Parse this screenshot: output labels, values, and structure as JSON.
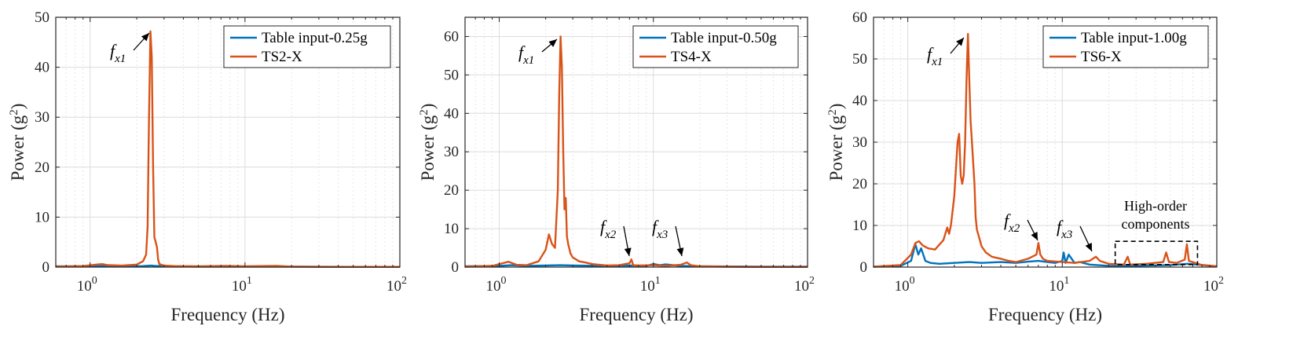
{
  "chart_data": [
    {
      "type": "line",
      "xscale": "log",
      "xlim": [
        0.6,
        100
      ],
      "ylim": [
        0,
        50
      ],
      "yticks": [
        0,
        10,
        20,
        30,
        40,
        50
      ],
      "xtick_labels": [
        {
          "base": "10",
          "exp": "0"
        },
        {
          "base": "10",
          "exp": "1"
        },
        {
          "base": "10",
          "exp": "2"
        }
      ],
      "xlabel": "Frequency (Hz)",
      "ylabel": {
        "main": "Power (g",
        "sup": "2",
        "close": ")"
      },
      "grid": true,
      "legend_position": "top-right",
      "series": [
        {
          "name": "Table input-0.25g",
          "color": "#0072BD",
          "x": [
            0.6,
            1.0,
            1.2,
            1.5,
            2.0,
            2.2,
            2.45,
            2.5,
            2.6,
            2.8,
            3.2,
            5,
            10,
            20,
            50,
            100
          ],
          "y": [
            0.15,
            0.15,
            0.2,
            0.15,
            0.15,
            0.2,
            0.3,
            0.3,
            0.25,
            0.2,
            0.15,
            0.1,
            0.1,
            0.1,
            0.05,
            0.05
          ]
        },
        {
          "name": "TS2-X",
          "color": "#D95319",
          "x": [
            0.6,
            0.9,
            1.1,
            1.2,
            1.3,
            1.6,
            2.0,
            2.2,
            2.3,
            2.35,
            2.4,
            2.45,
            2.5,
            2.55,
            2.6,
            2.65,
            2.7,
            2.75,
            2.8,
            3.0,
            3.5,
            5,
            7.5,
            10,
            16,
            20,
            30,
            50,
            100
          ],
          "y": [
            0.1,
            0.2,
            0.5,
            0.6,
            0.4,
            0.3,
            0.5,
            1.2,
            2.5,
            8,
            30,
            47.2,
            42,
            20,
            6,
            5,
            4,
            1.5,
            0.6,
            0.3,
            0.2,
            0.15,
            0.25,
            0.15,
            0.25,
            0.1,
            0.05,
            0.05,
            0.05
          ]
        }
      ],
      "annotations": [
        {
          "text": "f",
          "sub": "x1",
          "x": 2.48,
          "y": 47
        }
      ]
    },
    {
      "type": "line",
      "xscale": "log",
      "xlim": [
        0.6,
        100
      ],
      "ylim": [
        0,
        65
      ],
      "yticks": [
        0,
        10,
        20,
        30,
        40,
        50,
        60
      ],
      "xtick_labels": [
        {
          "base": "10",
          "exp": "0"
        },
        {
          "base": "10",
          "exp": "1"
        },
        {
          "base": "10",
          "exp": "2"
        }
      ],
      "xlabel": "Frequency (Hz)",
      "ylabel": {
        "main": "Power (g",
        "sup": "2",
        "close": ")"
      },
      "grid": true,
      "legend_position": "top-right",
      "series": [
        {
          "name": "Table input-0.50g",
          "color": "#0072BD",
          "x": [
            0.6,
            1.0,
            1.2,
            1.5,
            2.0,
            2.5,
            3,
            5,
            7,
            9,
            10,
            11,
            12,
            15,
            20,
            50,
            100
          ],
          "y": [
            0.2,
            0.3,
            0.5,
            0.3,
            0.4,
            0.5,
            0.4,
            0.3,
            0.4,
            0.3,
            0.8,
            0.5,
            0.7,
            0.3,
            0.2,
            0.1,
            0.1
          ]
        },
        {
          "name": "TS4-X",
          "color": "#D95319",
          "x": [
            0.6,
            0.9,
            1.05,
            1.15,
            1.3,
            1.5,
            1.8,
            2.0,
            2.1,
            2.2,
            2.3,
            2.4,
            2.45,
            2.5,
            2.55,
            2.6,
            2.65,
            2.7,
            2.75,
            2.8,
            2.9,
            3.0,
            3.3,
            3.6,
            4,
            5,
            6,
            7,
            7.2,
            7.4,
            8,
            10,
            12,
            15,
            16.5,
            17.5,
            20,
            30,
            50,
            100
          ],
          "y": [
            0.1,
            0.3,
            1.0,
            1.4,
            0.6,
            0.5,
            1.5,
            4.5,
            8.5,
            6,
            5,
            20,
            45,
            60,
            52,
            30,
            15,
            18,
            8,
            6,
            3.5,
            2.5,
            1.5,
            1.2,
            0.8,
            0.4,
            0.5,
            1.0,
            2.0,
            0.5,
            0.4,
            0.5,
            0.3,
            0.6,
            1.2,
            0.5,
            0.2,
            0.1,
            0.05,
            0.05
          ]
        }
      ],
      "annotations": [
        {
          "text": "f",
          "sub": "x1",
          "x": 2.5,
          "y": 60
        },
        {
          "text": "f",
          "sub": "x2",
          "x": 7.2,
          "y": 2.2
        },
        {
          "text": "f",
          "sub": "x3",
          "x": 17,
          "y": 1.2
        }
      ]
    },
    {
      "type": "line",
      "xscale": "log",
      "xlim": [
        0.6,
        100
      ],
      "ylim": [
        0,
        60
      ],
      "yticks": [
        0,
        10,
        20,
        30,
        40,
        50,
        60
      ],
      "xtick_labels": [
        {
          "base": "10",
          "exp": "0"
        },
        {
          "base": "10",
          "exp": "1"
        },
        {
          "base": "10",
          "exp": "2"
        }
      ],
      "xlabel": "Frequency (Hz)",
      "ylabel": {
        "main": "Power (g",
        "sup": "2",
        "close": ")"
      },
      "grid": true,
      "legend_position": "top-right",
      "series": [
        {
          "name": "Table input-1.00g",
          "color": "#0072BD",
          "x": [
            0.6,
            0.9,
            1.05,
            1.12,
            1.17,
            1.22,
            1.3,
            1.4,
            1.6,
            2.0,
            2.5,
            3,
            4,
            5,
            6,
            7,
            8,
            9,
            10,
            10.2,
            10.5,
            11,
            12,
            13,
            15,
            20,
            30,
            50,
            65,
            100
          ],
          "y": [
            0.1,
            0.3,
            1.5,
            5.5,
            3.0,
            4.5,
            1.5,
            1.0,
            0.8,
            1.0,
            1.2,
            1.0,
            1.2,
            1.0,
            1.3,
            1.5,
            1.2,
            1.0,
            1.5,
            3.5,
            1.0,
            3.0,
            1.0,
            1.2,
            0.6,
            0.3,
            0.3,
            0.5,
            0.8,
            0.2
          ]
        },
        {
          "name": "TS6-X",
          "color": "#D95319",
          "x": [
            0.6,
            0.9,
            1.05,
            1.12,
            1.18,
            1.25,
            1.35,
            1.5,
            1.7,
            1.8,
            1.85,
            1.9,
            2.0,
            2.1,
            2.15,
            2.2,
            2.25,
            2.3,
            2.35,
            2.4,
            2.45,
            2.5,
            2.55,
            2.6,
            2.65,
            2.7,
            2.75,
            2.8,
            2.9,
            3.0,
            3.2,
            3.5,
            4.0,
            4.5,
            5,
            6,
            6.8,
            7.0,
            7.2,
            7.5,
            8,
            10,
            12,
            15,
            16.5,
            17.5,
            20,
            25,
            26.5,
            27.5,
            35,
            45,
            47,
            49,
            55,
            62,
            64,
            66,
            80,
            100
          ],
          "y": [
            0.1,
            0.5,
            3,
            5.8,
            6.2,
            5.2,
            4.5,
            4.2,
            6.5,
            9.5,
            8,
            10,
            17,
            30,
            32,
            22,
            20,
            22,
            30,
            45,
            56,
            45,
            35,
            30,
            25,
            20,
            12,
            9,
            7,
            5,
            3.5,
            2.5,
            2,
            1.5,
            1.2,
            2,
            3,
            5.8,
            3,
            2,
            1.5,
            1.2,
            1,
            1.5,
            2.5,
            1.5,
            0.8,
            0.6,
            2.5,
            0.6,
            0.8,
            1.2,
            3.5,
            1.2,
            1.0,
            1.8,
            5.5,
            1.5,
            0.5,
            0.2
          ]
        }
      ],
      "annotations": [
        {
          "text": "f",
          "sub": "x1",
          "x": 2.45,
          "y": 56
        },
        {
          "text": "f",
          "sub": "x2",
          "x": 7.0,
          "y": 5.8
        },
        {
          "text": "f",
          "sub": "x3",
          "x": 17,
          "y": 2.6
        }
      ],
      "box_annotation": {
        "label_lines": [
          "High-order",
          "components"
        ],
        "x_range": [
          22,
          75
        ],
        "y_range": [
          0.6,
          6.2
        ]
      }
    }
  ]
}
